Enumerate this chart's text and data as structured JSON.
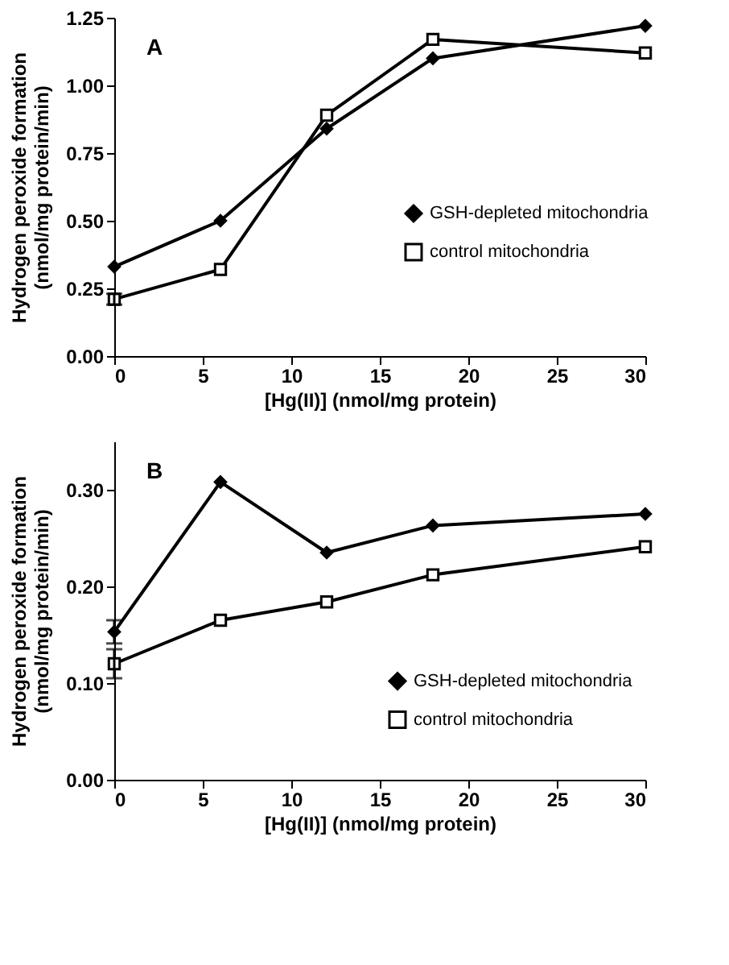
{
  "chart_data": [
    {
      "type": "line",
      "annotations": [
        "A"
      ],
      "xlabel": "[Hg(II)]    (nmol/mg  protein)",
      "ylabel": "Hydrogen peroxide formation\n(nmol/mg protein/min)",
      "x": [
        0,
        6,
        12,
        18,
        30
      ],
      "xlim": [
        0,
        30
      ],
      "xticks": [
        0,
        5,
        10,
        15,
        20,
        25,
        30
      ],
      "ylim": [
        0,
        1.25
      ],
      "yticks": [
        {
          "value": 0,
          "label": "0.00"
        },
        {
          "value": 0.25,
          "label": "0.25"
        },
        {
          "value": 0.5,
          "label": "0.50"
        },
        {
          "value": 0.75,
          "label": "0.75"
        },
        {
          "value": 1,
          "label": "1.00"
        },
        {
          "value": 1.25,
          "label": "1.25"
        }
      ],
      "series": [
        {
          "name": "GSH-depleted mitochondria",
          "color": "#000000",
          "marker": "diamond",
          "values": [
            0.33,
            0.5,
            0.84,
            1.1,
            1.22
          ]
        },
        {
          "name": "control mitochondria",
          "color": "#000000",
          "marker": "square",
          "values": [
            0.21,
            0.32,
            0.89,
            1.17,
            1.12
          ],
          "errors": [
            0.02,
            null,
            null,
            null,
            null
          ]
        }
      ],
      "legend": "right",
      "grid": false
    },
    {
      "type": "line",
      "annotations": [
        "B"
      ],
      "xlabel": "[Hg(II)]   (nmol/mg   protein)",
      "ylabel": "Hydrogen peroxide formation\n(nmol/mg protein/min)",
      "x": [
        0,
        6,
        12,
        18,
        30
      ],
      "xlim": [
        0,
        30
      ],
      "xticks": [
        0,
        5,
        10,
        15,
        20,
        25,
        30
      ],
      "ylim": [
        0,
        0.35
      ],
      "yticks": [
        {
          "value": 0,
          "label": "0.00"
        },
        {
          "value": 0.1,
          "label": "0.10"
        },
        {
          "value": 0.2,
          "label": "0.20"
        },
        {
          "value": 0.3,
          "label": "0.30"
        }
      ],
      "series": [
        {
          "name": "GSH-depleted mitochondria",
          "color": "#000000",
          "marker": "diamond",
          "values": [
            0.153,
            0.308,
            0.235,
            0.263,
            0.275
          ],
          "errors": [
            0.012,
            null,
            null,
            null,
            null
          ]
        },
        {
          "name": "control mitochondria",
          "color": "#000000",
          "marker": "square",
          "values": [
            0.12,
            0.165,
            0.184,
            0.212,
            0.241
          ],
          "errors": [
            0.015,
            null,
            null,
            null,
            null
          ]
        }
      ],
      "legend": "bottom right",
      "grid": false
    }
  ]
}
